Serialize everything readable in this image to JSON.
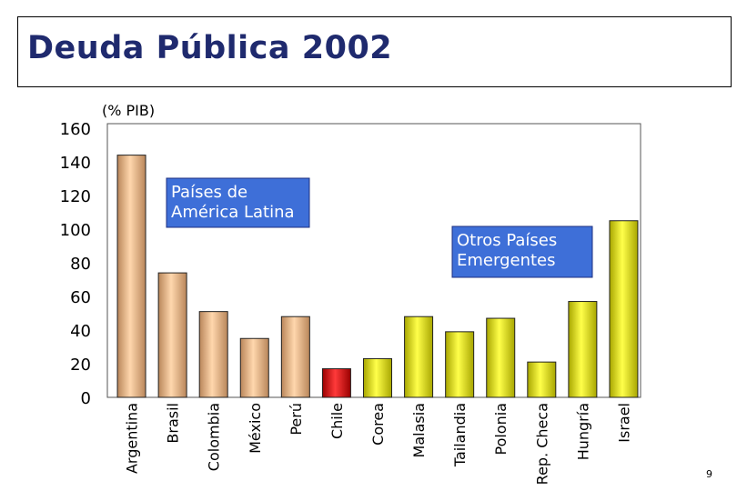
{
  "header": {
    "title": "Deuda Pública 2002"
  },
  "page_number": "9",
  "chart_data": {
    "type": "bar",
    "title": "Deuda Pública 2002",
    "ylabel": "(% PIB)",
    "xlabel": "",
    "ylim": [
      0,
      160
    ],
    "yticks": [
      0,
      20,
      40,
      60,
      80,
      100,
      120,
      140,
      160
    ],
    "grid": false,
    "categories": [
      "Argentina",
      "Brasil",
      "Colombia",
      "México",
      "Perú",
      "Chile",
      "Corea",
      "Malasia",
      "Tailandia",
      "Polonia",
      "Rep. Checa",
      "Hungría",
      "Israel"
    ],
    "values": [
      144,
      74,
      51,
      35,
      48,
      17,
      23,
      48,
      39,
      47,
      21,
      57,
      105
    ],
    "groups": [
      "latam",
      "latam",
      "latam",
      "latam",
      "latam",
      "highlight",
      "other",
      "other",
      "other",
      "other",
      "other",
      "other",
      "other"
    ],
    "colors": {
      "latam": "#f2bf8e",
      "highlight": "#e60000",
      "other": "#f0ee10"
    },
    "annotations": [
      {
        "text": [
          "Países de",
          "América Latina"
        ],
        "bg": "#3e6fd8"
      },
      {
        "text": [
          "Otros Países",
          "Emergentes"
        ],
        "bg": "#3e6fd8"
      }
    ]
  }
}
